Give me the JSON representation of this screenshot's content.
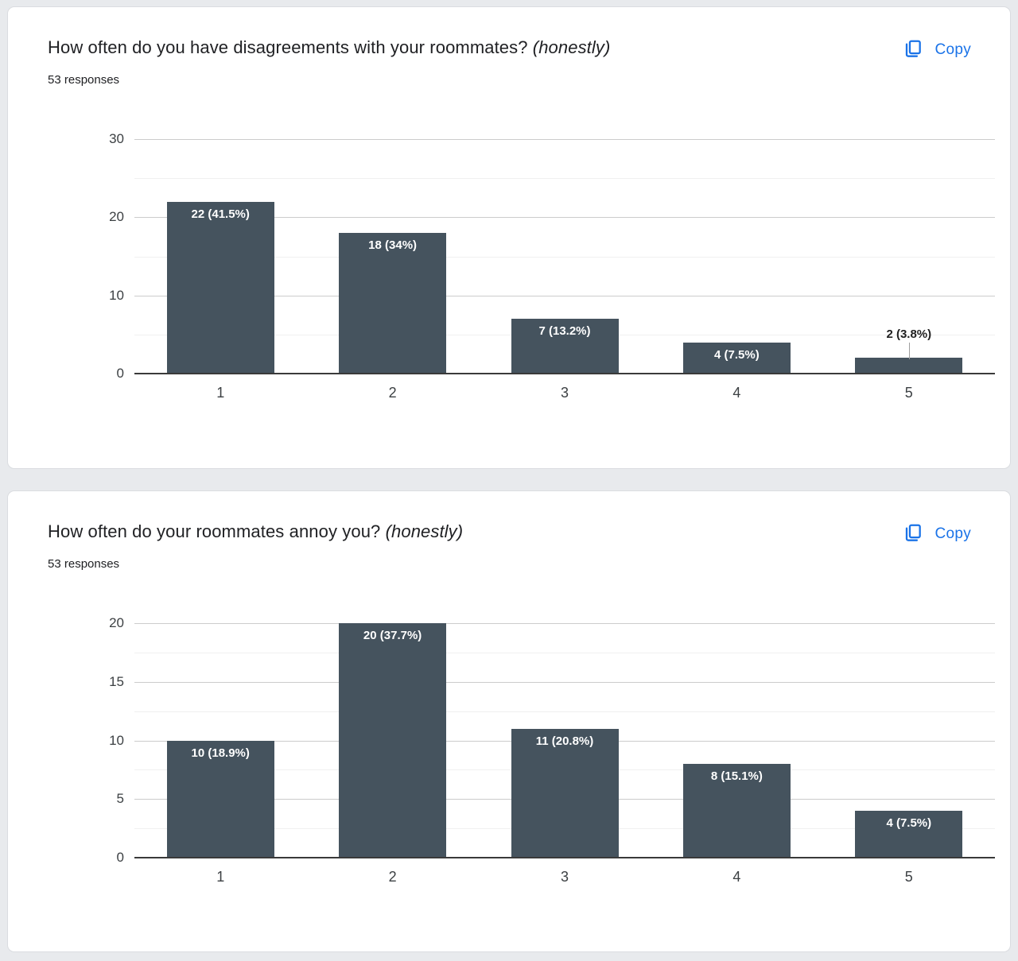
{
  "page": {
    "background": "#e8eaed"
  },
  "cards": [
    {
      "title": "How often do you have disagreements with your roommates?",
      "title_suffix": "(honestly)",
      "responses": "53 responses",
      "copy_label": "Copy"
    },
    {
      "title": "How often do your roommates annoy you?",
      "title_suffix": "(honestly)",
      "responses": "53 responses",
      "copy_label": "Copy"
    }
  ],
  "colors": {
    "accent_blue": "#1a73e8",
    "bar": "#45535e",
    "major_gridline": "#cccccc",
    "minor_gridline": "#f0f0f0",
    "axis_line": "#3a3a3a"
  },
  "chart_data": [
    {
      "type": "bar",
      "title": "How often do you have disagreements with your roommates? (honestly)",
      "subtitle": "53 responses",
      "categories": [
        "1",
        "2",
        "3",
        "4",
        "5"
      ],
      "values": [
        22,
        18,
        7,
        4,
        2
      ],
      "bar_labels": [
        "22 (41.5%)",
        "18 (34%)",
        "7 (13.2%)",
        "4 (7.5%)",
        "2 (3.8%)"
      ],
      "label_placement": [
        "inside",
        "inside",
        "inside",
        "inside",
        "outside"
      ],
      "xlabel": "",
      "ylabel": "",
      "ylim": [
        0,
        30
      ],
      "yticks": [
        0,
        10,
        20,
        30
      ],
      "minor_gridlines": [
        5,
        15,
        25
      ],
      "grid": true,
      "legend": "none"
    },
    {
      "type": "bar",
      "title": "How often do your roommates annoy you? (honestly)",
      "subtitle": "53 responses",
      "categories": [
        "1",
        "2",
        "3",
        "4",
        "5"
      ],
      "values": [
        10,
        20,
        11,
        8,
        4
      ],
      "bar_labels": [
        "10 (18.9%)",
        "20 (37.7%)",
        "11 (20.8%)",
        "8 (15.1%)",
        "4 (7.5%)"
      ],
      "label_placement": [
        "inside",
        "inside",
        "inside",
        "inside",
        "inside"
      ],
      "xlabel": "",
      "ylabel": "",
      "ylim": [
        0,
        20
      ],
      "yticks": [
        0,
        5,
        10,
        15,
        20
      ],
      "minor_gridlines": [
        2.5,
        7.5,
        12.5,
        17.5
      ],
      "grid": true,
      "legend": "none"
    }
  ]
}
